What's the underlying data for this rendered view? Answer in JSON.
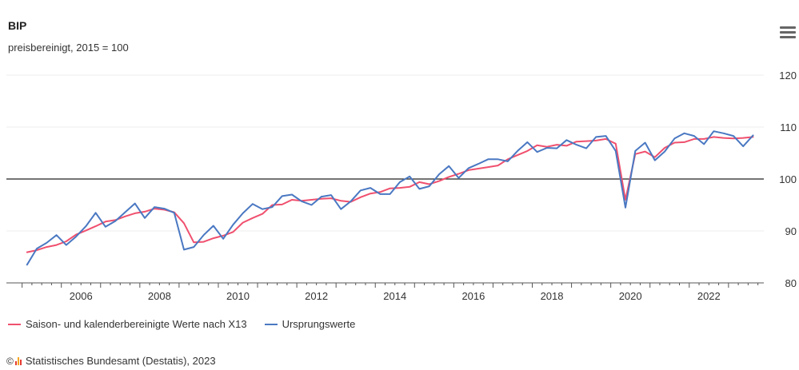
{
  "header": {
    "title": "BIP",
    "subtitle": "preisbereinigt, 2015 = 100",
    "menu_icon": "hamburger-menu-icon"
  },
  "legend": {
    "items": [
      {
        "label": "Saison- und kalenderbereinigte Werte nach X13",
        "color": "#f0506e"
      },
      {
        "label": "Ursprungswerte",
        "color": "#4a78c2"
      }
    ]
  },
  "footer": {
    "copyright_symbol": "©",
    "source": "Statistisches Bundesamt (Destatis), 2023",
    "logo_icon": "destatis-logo-icon"
  },
  "chart_data": {
    "type": "line",
    "title": "BIP",
    "subtitle": "preisbereinigt, 2015 = 100",
    "xlabel": "",
    "ylabel": "",
    "xlim": [
      2004.6,
      2023.9
    ],
    "ylim": [
      80,
      120
    ],
    "yticks": [
      80,
      90,
      100,
      110,
      120
    ],
    "xticks": [
      "2006",
      "2008",
      "2010",
      "2012",
      "2014",
      "2016",
      "2018",
      "2020",
      "2022"
    ],
    "reference_line": 100,
    "grid": "horizontal",
    "legend_position": "bottom-left",
    "x_start": "2005 Q1",
    "series": [
      {
        "name": "Saison- und kalenderbereinigte Werte nach X13",
        "color": "#f0506e",
        "values": [
          85.9,
          86.3,
          86.9,
          87.3,
          88.0,
          89.3,
          90.1,
          90.9,
          91.8,
          92.1,
          92.8,
          93.4,
          93.7,
          94.3,
          94.1,
          93.6,
          91.5,
          87.8,
          87.9,
          88.6,
          89.1,
          89.8,
          91.6,
          92.5,
          93.3,
          95.0,
          95.1,
          96.0,
          95.8,
          96.0,
          96.2,
          96.3,
          95.8,
          95.6,
          96.5,
          97.2,
          97.5,
          98.2,
          98.3,
          98.5,
          99.4,
          99.0,
          99.6,
          100.4,
          101.0,
          101.7,
          102.0,
          102.3,
          102.6,
          103.8,
          104.6,
          105.4,
          106.5,
          106.2,
          106.6,
          106.4,
          107.2,
          107.3,
          107.4,
          107.7,
          106.8,
          96.0,
          104.8,
          105.3,
          104.2,
          106.0,
          107.0,
          107.1,
          107.7,
          107.7,
          108.1,
          107.9,
          107.8,
          107.9,
          108.1
        ]
      },
      {
        "name": "Ursprungswerte",
        "color": "#4a78c2",
        "values": [
          83.5,
          86.6,
          87.7,
          89.2,
          87.3,
          88.9,
          90.9,
          93.5,
          90.8,
          91.9,
          93.6,
          95.3,
          92.5,
          94.6,
          94.3,
          93.5,
          86.4,
          86.9,
          89.2,
          91.0,
          88.5,
          91.2,
          93.4,
          95.2,
          94.2,
          94.6,
          96.7,
          97.0,
          95.7,
          95.0,
          96.6,
          96.9,
          94.2,
          95.7,
          97.8,
          98.3,
          97.1,
          97.1,
          99.4,
          100.5,
          98.1,
          98.6,
          100.9,
          102.5,
          100.2,
          102.1,
          102.9,
          103.8,
          103.8,
          103.4,
          105.4,
          107.1,
          105.2,
          106.0,
          105.9,
          107.5,
          106.6,
          105.9,
          108.1,
          108.3,
          105.4,
          94.5,
          105.4,
          107.0,
          103.6,
          105.3,
          107.8,
          108.8,
          108.3,
          106.7,
          109.2,
          108.8,
          108.3,
          106.3,
          108.4
        ]
      }
    ]
  }
}
